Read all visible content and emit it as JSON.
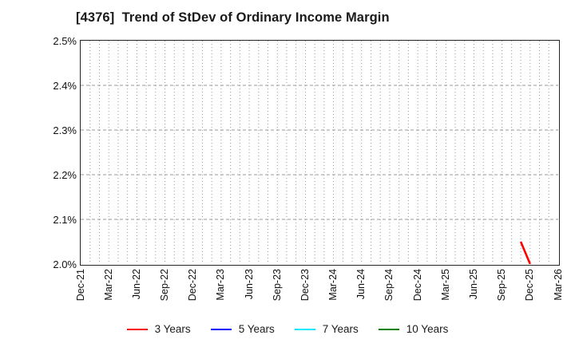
{
  "title": "[4376]  Trend of StDev of Ordinary Income Margin",
  "chart_data": {
    "type": "line",
    "title": "[4376]  Trend of StDev of Ordinary Income Margin",
    "x_axis": {
      "start": "Dec-21",
      "end": "Mar-26",
      "months_total": 51,
      "tick_every_months": 3,
      "tick_labels": [
        "Dec-21",
        "Mar-22",
        "Jun-22",
        "Sep-22",
        "Dec-22",
        "Mar-23",
        "Jun-23",
        "Sep-23",
        "Dec-23",
        "Mar-24",
        "Jun-24",
        "Sep-24",
        "Dec-24",
        "Mar-25",
        "Jun-25",
        "Sep-25",
        "Dec-25",
        "Mar-26"
      ]
    },
    "y_axis": {
      "min": 2.0,
      "max": 2.5,
      "tick_step": 0.1,
      "unit": "%",
      "tick_labels": [
        "2.0%",
        "2.1%",
        "2.2%",
        "2.3%",
        "2.4%",
        "2.5%"
      ]
    },
    "grid": {
      "vertical": "dotted-monthly",
      "horizontal": "dashed-per-0.1%",
      "color": "#999999"
    },
    "legend_position": "bottom",
    "series": [
      {
        "name": "3 Years",
        "color": "#ff0000",
        "points": [
          {
            "x": "Nov-25",
            "y": 2.05
          },
          {
            "x": "Dec-25",
            "y": 2.0
          }
        ]
      },
      {
        "name": "5 Years",
        "color": "#0000ff",
        "points": []
      },
      {
        "name": "7 Years",
        "color": "#00eaff",
        "points": []
      },
      {
        "name": "10 Years",
        "color": "#007f00",
        "points": []
      }
    ]
  },
  "colors": {
    "frame": "#262626",
    "grid": "#999999",
    "text": "#1a1a1a",
    "background": "#ffffff"
  }
}
